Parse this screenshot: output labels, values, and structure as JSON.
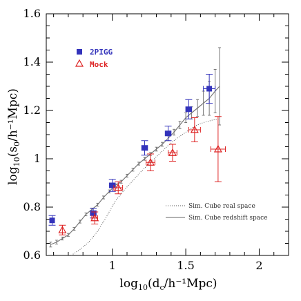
{
  "chart_data": {
    "type": "scatter",
    "xlabel": "log10(dc/h-1Mpc)",
    "ylabel": "log10(s0/h-1Mpc)",
    "xlabel_parts": {
      "pre": "log",
      "sub1": "10",
      "mid": "(d",
      "sub2": "c",
      "post": "/h⁻¹Mpc)"
    },
    "ylabel_parts": {
      "pre": "log",
      "sub1": "10",
      "mid": "(s",
      "sub2": "0",
      "post": "/h⁻¹Mpc)"
    },
    "xlim": [
      0.55,
      2.2
    ],
    "ylim": [
      0.6,
      1.6
    ],
    "xticks": [
      {
        "value": 1.0,
        "label": "1"
      },
      {
        "value": 1.5,
        "label": "1.5"
      },
      {
        "value": 2.0,
        "label": "2"
      }
    ],
    "yticks": [
      {
        "value": 0.6,
        "label": "0.6"
      },
      {
        "value": 0.8,
        "label": "0.8"
      },
      {
        "value": 1.0,
        "label": "1"
      },
      {
        "value": 1.2,
        "label": "1.2"
      },
      {
        "value": 1.4,
        "label": "1.4"
      },
      {
        "value": 1.6,
        "label": "1.6"
      }
    ],
    "colors": {
      "twopigg": "#3333bb",
      "mock": "#dd2222",
      "sim": "#777777"
    },
    "legend_top": [
      {
        "name": "2PIGG",
        "marker": "square",
        "color": "#3333bb"
      },
      {
        "name": "Mock",
        "marker": "triangle",
        "color": "#dd2222"
      }
    ],
    "legend_bottom": [
      {
        "name": "Sim. Cube real space",
        "style": "dotted"
      },
      {
        "name": "Sim. Cube redshift space",
        "style": "solid"
      }
    ],
    "series": [
      {
        "name": "2PIGG",
        "marker": "square",
        "color": "#3333bb",
        "points": [
          {
            "x": 0.59,
            "y": 0.745,
            "yerr": 0.02,
            "xerr": 0
          },
          {
            "x": 0.87,
            "y": 0.775,
            "yerr": 0.02,
            "xerr": 0.02
          },
          {
            "x": 1.0,
            "y": 0.89,
            "yerr": 0.025,
            "xerr": 0.02
          },
          {
            "x": 1.22,
            "y": 1.045,
            "yerr": 0.03,
            "xerr": 0.02
          },
          {
            "x": 1.38,
            "y": 1.105,
            "yerr": 0.03,
            "xerr": 0.02
          },
          {
            "x": 1.52,
            "y": 1.205,
            "yerr": 0.04,
            "xerr": 0.02
          },
          {
            "x": 1.66,
            "y": 1.29,
            "yerr": 0.06,
            "xerr": 0.04
          }
        ]
      },
      {
        "name": "Mock",
        "marker": "triangle",
        "color": "#dd2222",
        "points": [
          {
            "x": 0.66,
            "y": 0.705,
            "yerr": 0.02,
            "xerr": 0
          },
          {
            "x": 0.88,
            "y": 0.755,
            "yerr": 0.025,
            "xerr": 0.02
          },
          {
            "x": 1.04,
            "y": 0.88,
            "yerr": 0.025,
            "xerr": 0.03
          },
          {
            "x": 1.26,
            "y": 0.985,
            "yerr": 0.035,
            "xerr": 0.03
          },
          {
            "x": 1.41,
            "y": 1.025,
            "yerr": 0.035,
            "xerr": 0.03
          },
          {
            "x": 1.56,
            "y": 1.12,
            "yerr": 0.05,
            "xerr": 0.04
          },
          {
            "x": 1.72,
            "y": 1.04,
            "yerr": 0.135,
            "xerr": 0.05
          }
        ]
      }
    ],
    "sim_redshift": {
      "style": "solid",
      "x": [
        0.58,
        0.62,
        0.66,
        0.7,
        0.74,
        0.78,
        0.82,
        0.86,
        0.9,
        0.94,
        0.98,
        1.02,
        1.06,
        1.1,
        1.14,
        1.18,
        1.22,
        1.26,
        1.3,
        1.34,
        1.38,
        1.42,
        1.46,
        1.5,
        1.54,
        1.58,
        1.62,
        1.66,
        1.7,
        1.73
      ],
      "y": [
        0.645,
        0.655,
        0.67,
        0.685,
        0.71,
        0.74,
        0.77,
        0.79,
        0.81,
        0.84,
        0.865,
        0.89,
        0.905,
        0.93,
        0.955,
        0.98,
        1.0,
        1.02,
        1.04,
        1.06,
        1.085,
        1.11,
        1.14,
        1.17,
        1.19,
        1.21,
        1.23,
        1.25,
        1.28,
        1.3
      ],
      "yerr": [
        0.01,
        0.008,
        0.006,
        0.006,
        0.006,
        0.006,
        0.006,
        0.006,
        0.006,
        0.006,
        0.006,
        0.006,
        0.006,
        0.006,
        0.006,
        0.006,
        0.006,
        0.006,
        0.008,
        0.008,
        0.01,
        0.012,
        0.015,
        0.02,
        0.025,
        0.035,
        0.05,
        0.07,
        0.09,
        0.16
      ]
    },
    "sim_real": {
      "style": "dotted",
      "x": [
        0.72,
        0.78,
        0.84,
        0.9,
        0.96,
        1.02,
        1.08,
        1.14,
        1.2,
        1.26,
        1.32,
        1.38,
        1.44,
        1.5,
        1.56,
        1.62,
        1.68,
        1.73
      ],
      "y": [
        0.6,
        0.625,
        0.655,
        0.7,
        0.76,
        0.825,
        0.87,
        0.91,
        0.95,
        0.985,
        1.02,
        1.055,
        1.085,
        1.11,
        1.135,
        1.15,
        1.16,
        1.165
      ]
    }
  }
}
